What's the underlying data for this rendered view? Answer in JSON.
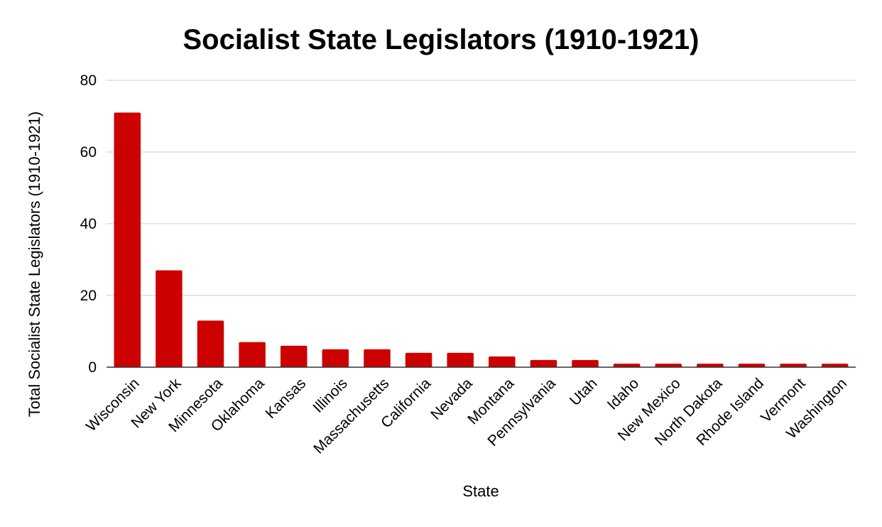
{
  "chart_data": {
    "type": "bar",
    "title": "Socialist State Legislators (1910-1921)",
    "xlabel": "State",
    "ylabel": "Total Socialist State Legislators (1910-1921)",
    "ylim": [
      0,
      80
    ],
    "yticks": [
      0,
      20,
      40,
      60,
      80
    ],
    "grid": true,
    "legend": "none",
    "bar_color": "#cc0000",
    "categories": [
      "Wisconsin",
      "New York",
      "Minnesota",
      "Oklahoma",
      "Kansas",
      "Illinois",
      "Massachusetts",
      "California",
      "Nevada",
      "Montana",
      "Pennsylvania",
      "Utah",
      "Idaho",
      "New Mexico",
      "North Dakota",
      "Rhode Island",
      "Vermont",
      "Washington"
    ],
    "values": [
      71,
      27,
      13,
      7,
      6,
      5,
      5,
      4,
      4,
      3,
      2,
      2,
      1,
      1,
      1,
      1,
      1,
      1
    ]
  }
}
